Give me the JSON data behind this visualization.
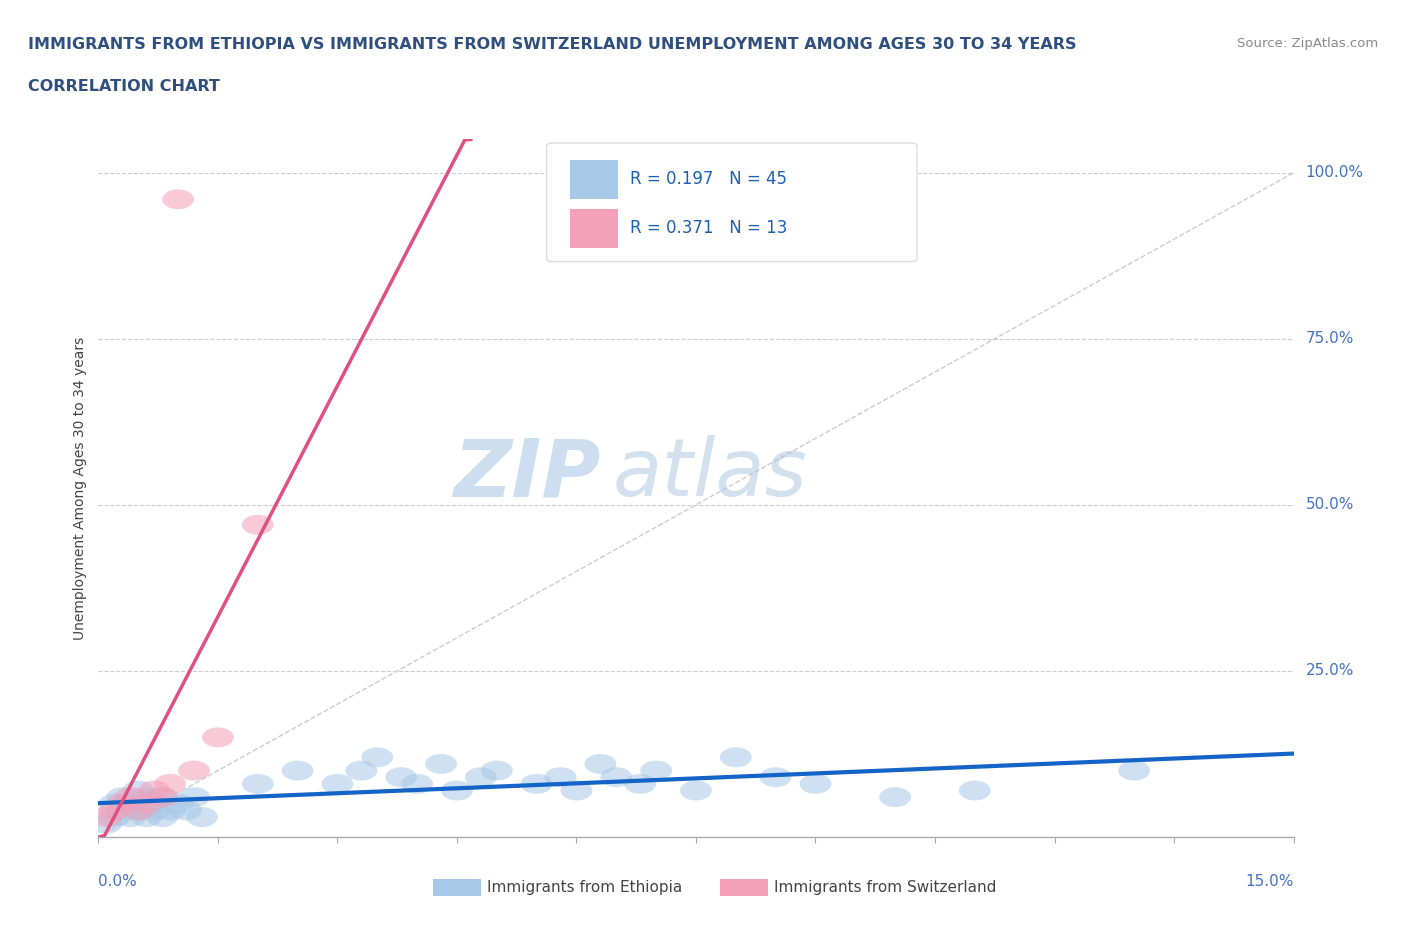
{
  "title_line1": "IMMIGRANTS FROM ETHIOPIA VS IMMIGRANTS FROM SWITZERLAND UNEMPLOYMENT AMONG AGES 30 TO 34 YEARS",
  "title_line2": "CORRELATION CHART",
  "source_text": "Source: ZipAtlas.com",
  "ylabel": "Unemployment Among Ages 30 to 34 years",
  "xlim": [
    0.0,
    0.15
  ],
  "ylim": [
    0.0,
    1.05
  ],
  "yticks": [
    0.25,
    0.5,
    0.75,
    1.0
  ],
  "ytick_labels": [
    "25.0%",
    "50.0%",
    "75.0%",
    "100.0%"
  ],
  "blue_color": "#A8C8E8",
  "pink_color": "#F4A0B8",
  "blue_line_color": "#1464C8",
  "pink_line_color": "#E05080",
  "diag_line_color": "#CCCCCC",
  "watermark_zip": "ZIP",
  "watermark_atlas": "atlas",
  "blue_x": [
    0.001,
    0.002,
    0.002,
    0.003,
    0.003,
    0.004,
    0.004,
    0.005,
    0.005,
    0.006,
    0.006,
    0.007,
    0.007,
    0.008,
    0.008,
    0.009,
    0.01,
    0.011,
    0.012,
    0.013,
    0.02,
    0.025,
    0.03,
    0.033,
    0.035,
    0.038,
    0.04,
    0.043,
    0.045,
    0.048,
    0.05,
    0.055,
    0.058,
    0.06,
    0.063,
    0.065,
    0.068,
    0.07,
    0.075,
    0.08,
    0.085,
    0.09,
    0.1,
    0.11,
    0.13
  ],
  "blue_y": [
    0.02,
    0.03,
    0.05,
    0.04,
    0.06,
    0.03,
    0.05,
    0.04,
    0.07,
    0.03,
    0.06,
    0.04,
    0.05,
    0.03,
    0.06,
    0.04,
    0.05,
    0.04,
    0.06,
    0.03,
    0.08,
    0.1,
    0.08,
    0.1,
    0.12,
    0.09,
    0.08,
    0.11,
    0.07,
    0.09,
    0.1,
    0.08,
    0.09,
    0.07,
    0.11,
    0.09,
    0.08,
    0.1,
    0.07,
    0.12,
    0.09,
    0.08,
    0.06,
    0.07,
    0.1
  ],
  "pink_x": [
    0.001,
    0.002,
    0.003,
    0.004,
    0.005,
    0.006,
    0.007,
    0.008,
    0.009,
    0.01,
    0.012,
    0.015,
    0.02
  ],
  "pink_y": [
    0.03,
    0.04,
    0.05,
    0.06,
    0.04,
    0.05,
    0.07,
    0.06,
    0.08,
    0.96,
    0.1,
    0.15,
    0.47
  ],
  "blue_reg_slope": 0.45,
  "blue_reg_intercept": 0.02,
  "pink_reg_slope": 35.0,
  "pink_reg_intercept": 0.0
}
